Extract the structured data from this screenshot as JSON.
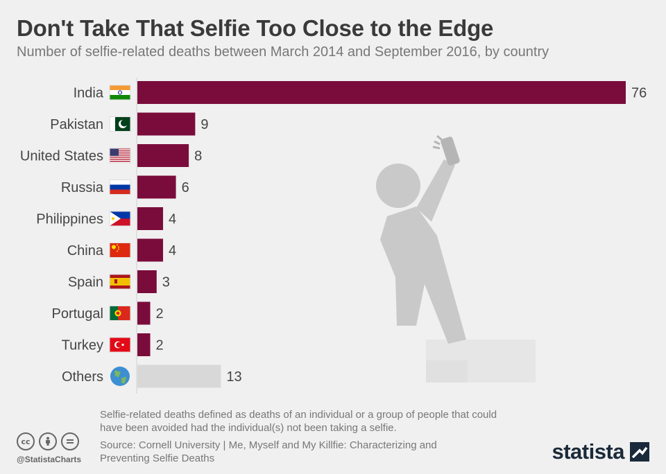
{
  "header": {
    "title": "Don't Take That Selfie Too Close to the Edge",
    "subtitle": "Number of selfie-related deaths between March 2014 and September 2016, by country"
  },
  "chart_data": {
    "type": "bar",
    "orientation": "horizontal",
    "categories": [
      "India",
      "Pakistan",
      "United States",
      "Russia",
      "Philippines",
      "China",
      "Spain",
      "Portugal",
      "Turkey",
      "Others"
    ],
    "values": [
      76,
      9,
      8,
      6,
      4,
      4,
      3,
      2,
      2,
      13
    ],
    "flag_icons": [
      "india-flag-icon",
      "pakistan-flag-icon",
      "us-flag-icon",
      "russia-flag-icon",
      "philippines-flag-icon",
      "china-flag-icon",
      "spain-flag-icon",
      "portugal-flag-icon",
      "turkey-flag-icon",
      "globe-icon"
    ],
    "bar_color": "#7a0c3b",
    "others_color": "#d8d8d8",
    "xlim": [
      0,
      76
    ],
    "grid": false,
    "data_labels": true
  },
  "footer": {
    "note": "Selfie-related deaths defined as deaths of an individual or a group of people that could have been avoided had the individual(s) not been taking a selfie.",
    "source": "Source: Cornell University | Me, Myself and My Killfie: Characterizing and Preventing Selfie Deaths",
    "handle": "@StatistaCharts",
    "license_icons": [
      "cc-icon",
      "attribution-icon",
      "no-derivatives-icon"
    ],
    "logo_text": "statista"
  }
}
